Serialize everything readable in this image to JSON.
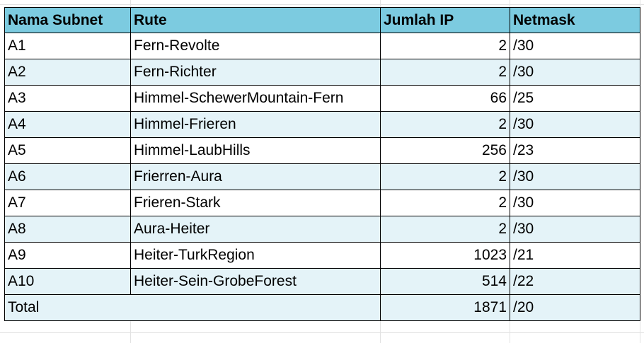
{
  "table": {
    "headers": [
      "Nama Subnet",
      "Rute",
      "Jumlah IP",
      "Netmask"
    ],
    "rows": [
      {
        "subnet": "A1",
        "route": "Fern-Revolte",
        "ip_count": "2",
        "netmask": "/30"
      },
      {
        "subnet": "A2",
        "route": "Fern-Richter",
        "ip_count": "2",
        "netmask": "/30"
      },
      {
        "subnet": "A3",
        "route": "Himmel-SchewerMountain-Fern",
        "ip_count": "66",
        "netmask": "/25"
      },
      {
        "subnet": "A4",
        "route": "Himmel-Frieren",
        "ip_count": "2",
        "netmask": "/30"
      },
      {
        "subnet": "A5",
        "route": "Himmel-LaubHills",
        "ip_count": "256",
        "netmask": "/23"
      },
      {
        "subnet": "A6",
        "route": "Frierren-Aura",
        "ip_count": "2",
        "netmask": "/30"
      },
      {
        "subnet": "A7",
        "route": "Frieren-Stark",
        "ip_count": "2",
        "netmask": "/30"
      },
      {
        "subnet": "A8",
        "route": "Aura-Heiter",
        "ip_count": "2",
        "netmask": "/30"
      },
      {
        "subnet": "A9",
        "route": "Heiter-TurkRegion",
        "ip_count": "1023",
        "netmask": "/21"
      },
      {
        "subnet": "A10",
        "route": "Heiter-Sein-GrobeForest",
        "ip_count": "514",
        "netmask": "/22"
      }
    ],
    "total": {
      "label": "Total",
      "ip_count": "1871",
      "netmask": "/20"
    }
  },
  "colors": {
    "header_bg": "#7ccbe0",
    "band_bg": "#e4f3f8",
    "border": "#000000"
  }
}
